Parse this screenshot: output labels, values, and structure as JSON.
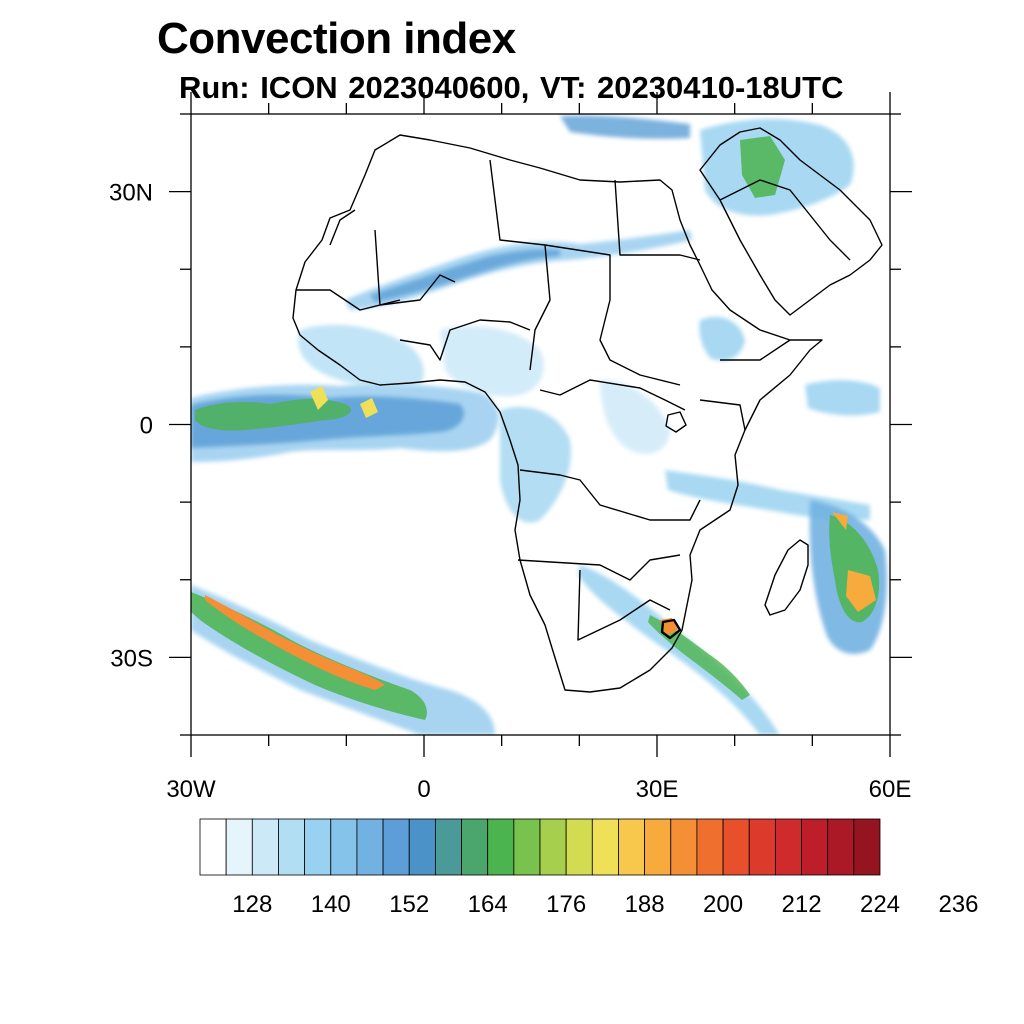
{
  "title": "Convection index",
  "subtitle": "Run: ICON 2023040600,  VT: 20230410-18UTC",
  "map": {
    "extent": {
      "lon": [
        -30,
        60
      ],
      "lat": [
        -40,
        40
      ]
    },
    "x_ticks": [
      {
        "lon": -30,
        "label": "30W"
      },
      {
        "lon": 0,
        "label": "0"
      },
      {
        "lon": 30,
        "label": "30E"
      },
      {
        "lon": 60,
        "label": "60E"
      }
    ],
    "y_ticks": [
      {
        "lat": 30,
        "label": "30N"
      },
      {
        "lat": 0,
        "label": "0"
      },
      {
        "lat": -30,
        "label": "30S"
      }
    ],
    "minor_tick_step_deg": 10
  },
  "colorbar": {
    "levels": [
      128,
      140,
      152,
      164,
      176,
      188,
      200,
      212,
      224,
      236
    ],
    "colors": [
      "#ffffff",
      "#e6f4fc",
      "#cce9f8",
      "#b2def4",
      "#99d2f0",
      "#85c3ea",
      "#72b2e2",
      "#5e9ed8",
      "#4a92c8",
      "#4a9a9a",
      "#4aa66c",
      "#4cb44e",
      "#79c24e",
      "#a6cf4e",
      "#d3dc50",
      "#f0e058",
      "#f8c84c",
      "#f7ab3d",
      "#f48f35",
      "#ef6f2f",
      "#e8502c",
      "#dc3b2c",
      "#cf2a2c",
      "#be1d2a",
      "#ab1826",
      "#951420"
    ]
  }
}
